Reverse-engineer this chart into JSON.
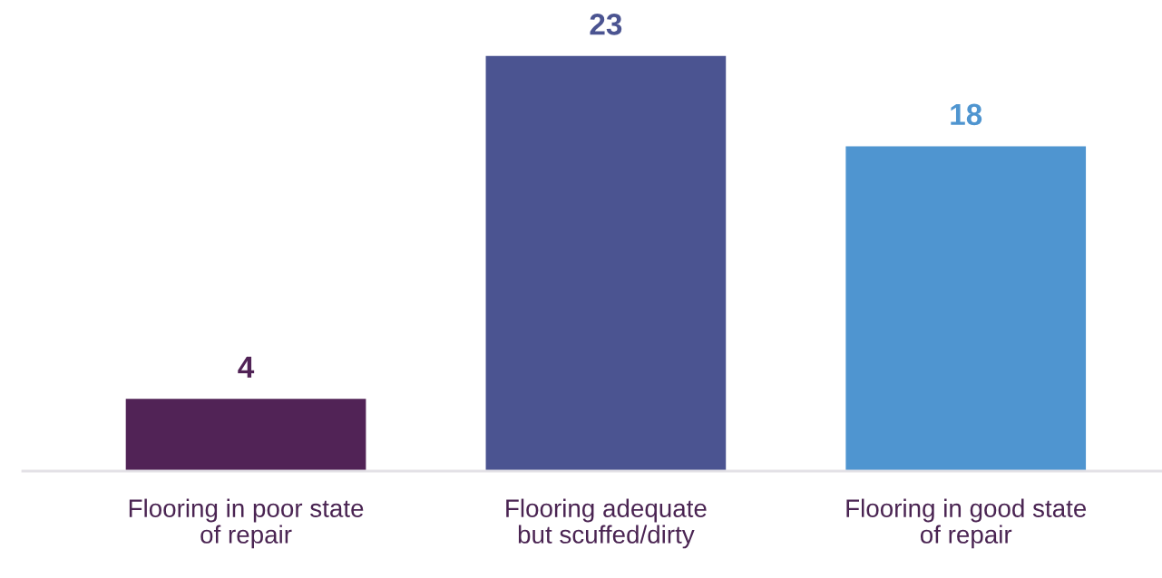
{
  "chart_data": {
    "type": "bar",
    "categories": [
      "Flooring in poor state\nof repair",
      "Flooring adequate\nbut scuffed/dirty",
      "Flooring in good state\nof repair"
    ],
    "values": [
      4,
      23,
      18
    ],
    "colors": [
      "#512356",
      "#4b5491",
      "#4f95d0"
    ],
    "data_labels": true
  }
}
